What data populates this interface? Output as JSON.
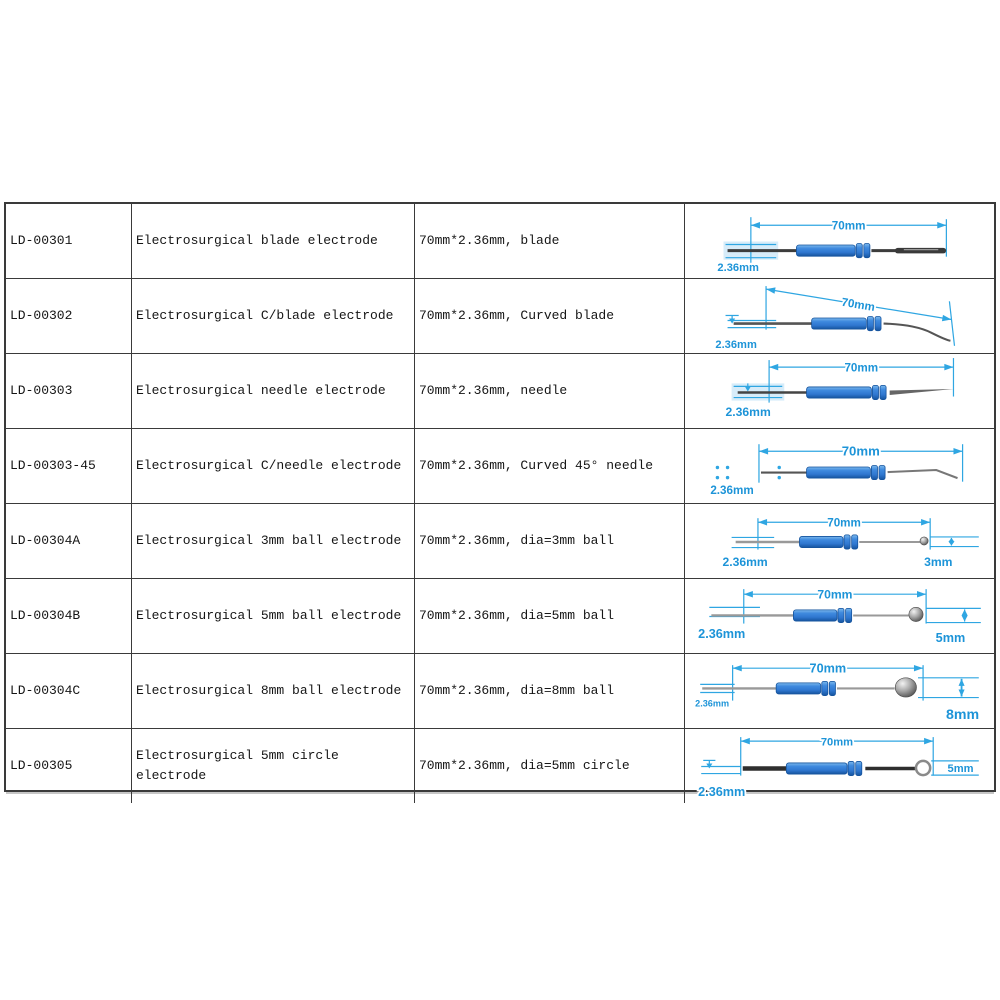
{
  "page": {
    "background": "#ffffff"
  },
  "colors": {
    "dimension": "#2fa6e2",
    "label": "#1d94d8",
    "hub_light": "#7db9ec",
    "hub": "#2f77d0",
    "hub_dark": "#16549e",
    "shaft_dark": "#3c3c3c",
    "shaft_light": "#999999",
    "table_border": "#3a3a3a",
    "highlight": "#d7ecf9"
  },
  "table": {
    "rows": [
      {
        "code": "LD-00301",
        "name": "Electrosurgical blade electrode",
        "spec": "70mm*2.36mm, blade",
        "diagram": {
          "tip": "blade",
          "length_label": "70mm",
          "dia_label": "2.36mm",
          "tip_label": ""
        }
      },
      {
        "code": "LD-00302",
        "name": "Electrosurgical C/blade electrode",
        "spec": "70mm*2.36mm, Curved blade",
        "diagram": {
          "tip": "curved-blade",
          "length_label": "70mm",
          "dia_label": "2.36mm",
          "tip_label": ""
        }
      },
      {
        "code": "LD-00303",
        "name": "Electrosurgical needle electrode",
        "spec": "70mm*2.36mm, needle",
        "diagram": {
          "tip": "needle",
          "length_label": "70mm",
          "dia_label": "2.36mm",
          "tip_label": ""
        }
      },
      {
        "code": "LD-00303-45",
        "name": "Electrosurgical C/needle electrode",
        "spec": "70mm*2.36mm, Curved 45° needle",
        "diagram": {
          "tip": "curved-needle",
          "length_label": "70mm",
          "dia_label": "2.36mm",
          "tip_label": ""
        }
      },
      {
        "code": "LD-00304A",
        "name": "Electrosurgical 3mm ball electrode",
        "spec": "70mm*2.36mm, dia=3mm ball",
        "diagram": {
          "tip": "ball",
          "length_label": "70mm",
          "dia_label": "2.36mm",
          "tip_label": "3mm"
        }
      },
      {
        "code": "LD-00304B",
        "name": "Electrosurgical 5mm ball electrode",
        "spec": "70mm*2.36mm, dia=5mm ball",
        "diagram": {
          "tip": "ball",
          "length_label": "70mm",
          "dia_label": "2.36mm",
          "tip_label": "5mm"
        }
      },
      {
        "code": "LD-00304C",
        "name": "Electrosurgical 8mm ball electrode",
        "spec": "70mm*2.36mm, dia=8mm ball",
        "diagram": {
          "tip": "ball",
          "length_label": "70mm",
          "dia_label": "2.36mm",
          "tip_label": "8mm"
        }
      },
      {
        "code": "LD-00305",
        "name": "Electrosurgical 5mm circle electrode",
        "spec": "70mm*2.36mm, dia=5mm circle",
        "diagram": {
          "tip": "circle",
          "length_label": "70mm",
          "dia_label": "2.36mm",
          "tip_label": "5mm"
        }
      }
    ]
  }
}
